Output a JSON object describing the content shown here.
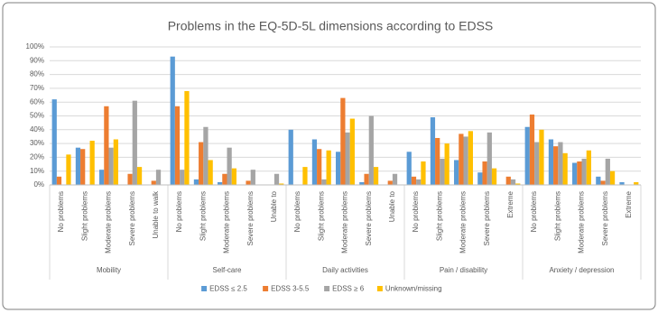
{
  "chart_data": {
    "type": "bar",
    "title": "Problems in the EQ-5D-5L dimensions according to EDSS",
    "groups": [
      {
        "name": "Mobility",
        "categories": [
          "No problems",
          "Slight problems",
          "Moderate problems",
          "Severe problems",
          "Unable to walk"
        ]
      },
      {
        "name": "Self-care",
        "categories": [
          "No problems",
          "Slight problems",
          "Moderate problems",
          "Severe problems",
          "Unable to"
        ]
      },
      {
        "name": "Daily activities",
        "categories": [
          "No problems",
          "Slight problems",
          "Moderate problems",
          "Severe problems",
          "Unable to"
        ]
      },
      {
        "name": "Pain / disability",
        "categories": [
          "No problems",
          "Slight problems",
          "Moderate problems",
          "Severe problems",
          "Extreme"
        ]
      },
      {
        "name": "Anxiety / depression",
        "categories": [
          "No problems",
          "Slight problems",
          "Moderate problems",
          "Severe problems",
          "Extreme"
        ]
      }
    ],
    "series": [
      {
        "name": "EDSS ≤ 2.5",
        "color": "#5b9bd5",
        "values": [
          62,
          27,
          11,
          0,
          0,
          93,
          4,
          2,
          0,
          0,
          40,
          33,
          24,
          2,
          0,
          24,
          49,
          18,
          9,
          0,
          42,
          33,
          16,
          6,
          2
        ]
      },
      {
        "name": "EDSS 3-5.5",
        "color": "#ed7d31",
        "values": [
          6,
          26,
          57,
          8,
          3,
          57,
          31,
          8,
          3,
          0,
          0,
          26,
          63,
          8,
          3,
          6,
          34,
          37,
          17,
          6,
          51,
          28,
          17,
          3,
          0
        ]
      },
      {
        "name": "EDSS ≥ 6",
        "color": "#a5a5a5",
        "values": [
          0,
          0,
          27,
          61,
          11,
          11,
          42,
          27,
          11,
          8,
          0,
          4,
          38,
          50,
          8,
          4,
          19,
          35,
          38,
          4,
          31,
          31,
          19,
          19,
          0
        ]
      },
      {
        "name": "Unknown/missing",
        "color": "#ffc000",
        "values": [
          22,
          32,
          33,
          13,
          0,
          68,
          18,
          12,
          0,
          1,
          13,
          25,
          48,
          13,
          0,
          17,
          30,
          39,
          12,
          1,
          40,
          23,
          25,
          10,
          2
        ]
      }
    ],
    "ylim": [
      0,
      100
    ],
    "yticks": [
      {
        "value": 0,
        "label": "0%"
      },
      {
        "value": 10,
        "label": "10%"
      },
      {
        "value": 20,
        "label": "20%"
      },
      {
        "value": 30,
        "label": "30%"
      },
      {
        "value": 40,
        "label": "40%"
      },
      {
        "value": 50,
        "label": "50%"
      },
      {
        "value": 60,
        "label": "60%"
      },
      {
        "value": 70,
        "label": "70%"
      },
      {
        "value": 80,
        "label": "80%"
      },
      {
        "value": 90,
        "label": "90%"
      },
      {
        "value": 100,
        "label": "100%"
      }
    ],
    "grid": true,
    "legend": "bottom"
  }
}
